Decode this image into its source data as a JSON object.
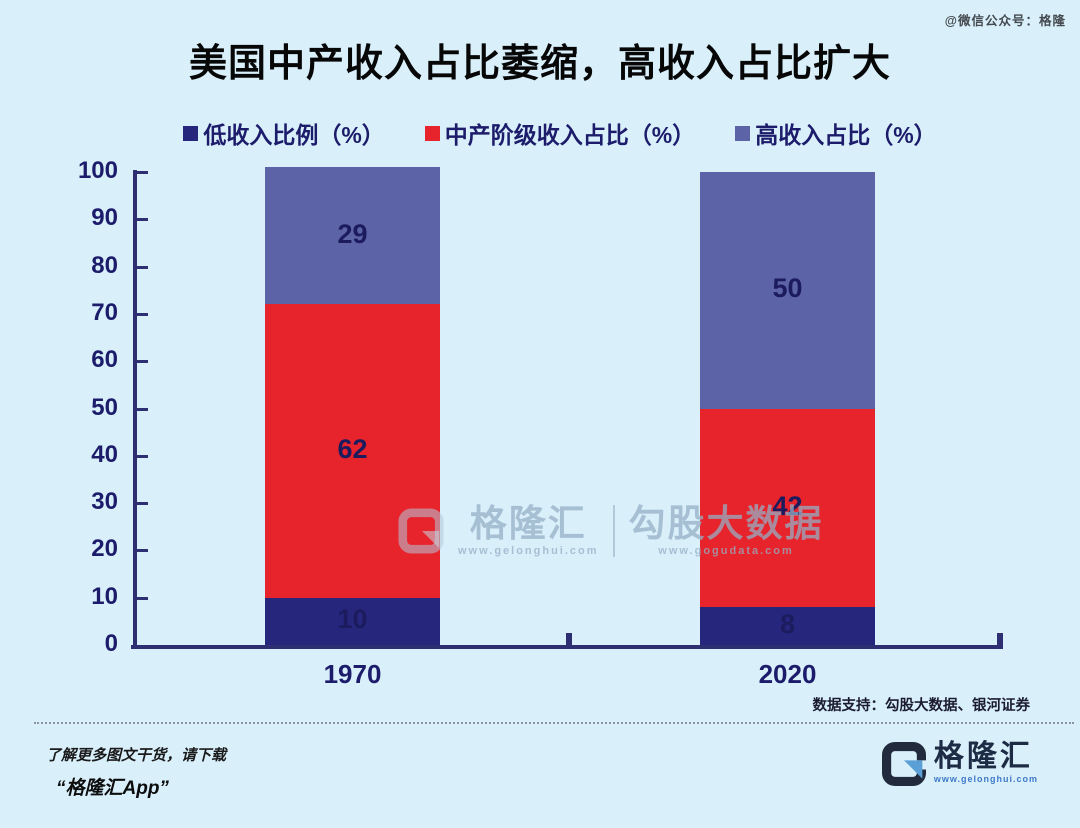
{
  "header": {
    "watermark_topright": "@微信公众号：格隆",
    "title": "美国中产收入占比萎缩，高收入占比扩大"
  },
  "chart_data": {
    "type": "bar",
    "stacked": true,
    "title": "美国中产收入占比萎缩，高收入占比扩大",
    "categories": [
      "1970",
      "2020"
    ],
    "series": [
      {
        "name": "低收入比例（%）",
        "color": "#26267d",
        "values": [
          10,
          8
        ]
      },
      {
        "name": "中产阶级收入占比（%）",
        "color": "#e7232b",
        "values": [
          62,
          42
        ]
      },
      {
        "name": "高收入占比（%）",
        "color": "#5d63a7",
        "values": [
          29,
          50
        ]
      }
    ],
    "ylim": [
      0,
      100
    ],
    "ytick_step": 10,
    "legend_position": "top",
    "grid": false,
    "axis_color": "#2e2e73",
    "label_color": "#1b1b5e"
  },
  "center_watermark": {
    "brand": "格隆汇",
    "brand_url": "www.gelonghui.com",
    "product": "勾股大数据",
    "product_url": "www.gogudata.com"
  },
  "source_note": "数据支持：勾股大数据、银河证券",
  "footer": {
    "promo_line1": "了解更多图文干货，请下载",
    "promo_line2": "“格隆汇App”",
    "brand_name": "格隆汇",
    "brand_url": "www.gelonghui.com"
  }
}
